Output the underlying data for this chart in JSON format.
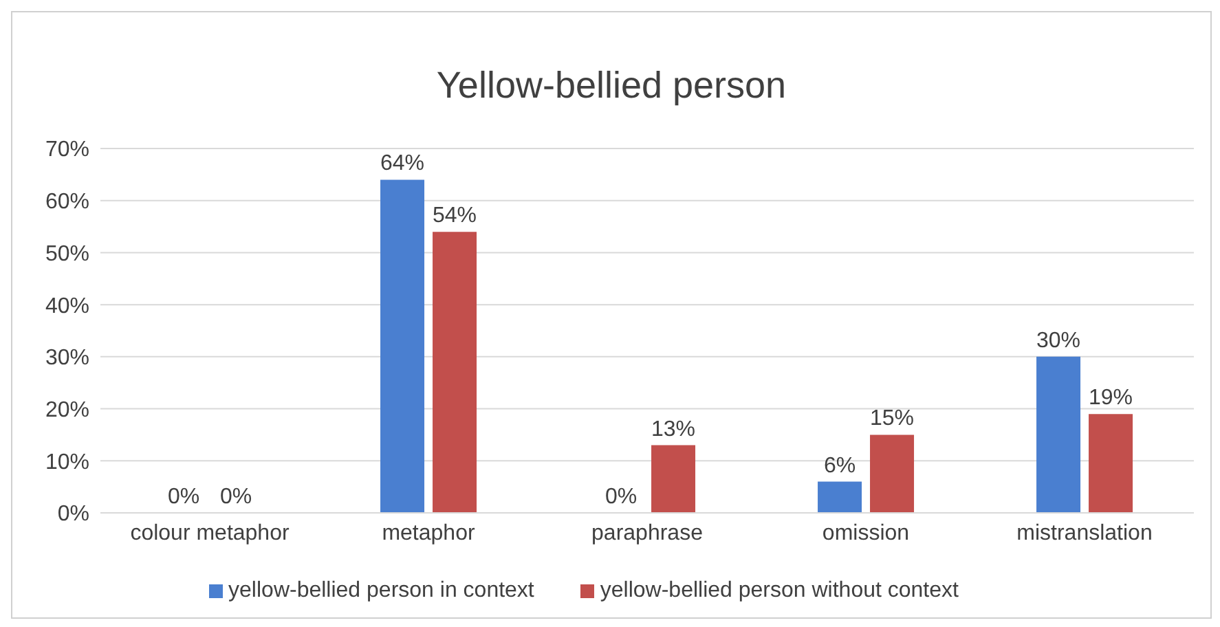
{
  "chart_data": {
    "type": "bar",
    "title": "Yellow-bellied person",
    "categories": [
      "colour metaphor",
      "metaphor",
      "paraphrase",
      "omission",
      "mistranslation"
    ],
    "series": [
      {
        "name": "yellow-bellied person in context",
        "color": "#4a7fd0",
        "values": [
          0,
          64,
          0,
          6,
          30
        ],
        "value_labels": [
          "0%",
          "64%",
          "0%",
          "6%",
          "30%"
        ]
      },
      {
        "name": "yellow-bellied person without context",
        "color": "#c24f4c",
        "values": [
          0,
          54,
          13,
          15,
          19
        ],
        "value_labels": [
          "0%",
          "54%",
          "13%",
          "15%",
          "19%"
        ]
      }
    ],
    "ylim": [
      0,
      70
    ],
    "yticks": [
      {
        "value": 0,
        "label": "0%"
      },
      {
        "value": 10,
        "label": "10%"
      },
      {
        "value": 20,
        "label": "20%"
      },
      {
        "value": 30,
        "label": "30%"
      },
      {
        "value": 40,
        "label": "40%"
      },
      {
        "value": 50,
        "label": "50%"
      },
      {
        "value": 60,
        "label": "60%"
      },
      {
        "value": 70,
        "label": "70%"
      }
    ],
    "grid": "y",
    "legend": "bottom"
  }
}
